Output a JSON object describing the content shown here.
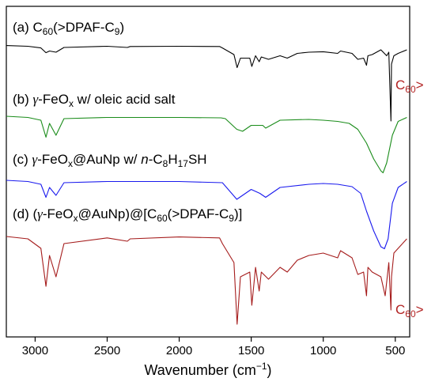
{
  "chart_data": {
    "type": "line",
    "xlabel": "Wavenumber (cm",
    "xlabel_sup": "−1",
    "xlabel_end": ")",
    "xlim": [
      3200,
      400
    ],
    "x_reversed": true,
    "x_ticks": [
      3000,
      2500,
      2000,
      1500,
      1000,
      500
    ],
    "x_tick_labels": [
      "3000",
      "2500",
      "2000",
      "1500",
      "1000",
      "500"
    ],
    "y_axis_labeled": false,
    "colors": {
      "a": "#000000",
      "b": "#1a8c1a",
      "c": "#1a1aee",
      "d": "#a51c1c",
      "annotation": "#b22222"
    },
    "series": [
      {
        "key": "a",
        "label_parts": {
          "prefix": "(a) C",
          "sub1": "60",
          "mid": "(>DPAF-C",
          "sub2": "9",
          "end": ")"
        },
        "x": [
          3200,
          3050,
          2960,
          2925,
          2900,
          2855,
          2800,
          2500,
          2360,
          2340,
          2000,
          1720,
          1700,
          1620,
          1598,
          1575,
          1510,
          1496,
          1470,
          1445,
          1430,
          1380,
          1300,
          1250,
          1180,
          1100,
          1000,
          900,
          880,
          800,
          760,
          720,
          700,
          690,
          660,
          600,
          560,
          545,
          530,
          526,
          510,
          480,
          420
        ],
        "y": [
          0.02,
          0.05,
          0.12,
          0.32,
          0.25,
          0.3,
          0.1,
          0.05,
          0.1,
          0.06,
          0.05,
          0.06,
          0.12,
          0.4,
          0.95,
          0.55,
          0.55,
          0.9,
          0.45,
          0.7,
          0.5,
          0.6,
          0.45,
          0.55,
          0.35,
          0.3,
          0.28,
          0.35,
          0.25,
          0.35,
          0.6,
          0.55,
          0.85,
          0.45,
          0.4,
          0.2,
          0.45,
          0.3,
          3.2,
          0.8,
          0.45,
          0.35,
          0.2
        ]
      },
      {
        "key": "b",
        "label_parts": {
          "greek": "γ",
          "prefix": "(b) ",
          "mid": "-FeO",
          "sub1": "x",
          "end": " w/ oleic acid salt"
        },
        "x": [
          3200,
          3050,
          2960,
          2925,
          2900,
          2855,
          2800,
          2500,
          2000,
          1710,
          1680,
          1600,
          1560,
          1500,
          1420,
          1400,
          1300,
          1100,
          1000,
          900,
          820,
          760,
          700,
          650,
          600,
          585,
          560,
          520,
          480,
          420
        ],
        "y": [
          0.02,
          0.05,
          0.12,
          0.55,
          0.2,
          0.5,
          0.08,
          0.05,
          0.05,
          0.06,
          0.08,
          0.35,
          0.4,
          0.25,
          0.25,
          0.32,
          0.12,
          0.1,
          0.12,
          0.15,
          0.2,
          0.35,
          0.7,
          1.1,
          1.4,
          1.45,
          1.2,
          0.5,
          0.15,
          0.05
        ]
      },
      {
        "key": "c",
        "label_parts": {
          "greek": "γ",
          "prefix": "(c) ",
          "mid": "-FeO",
          "sub1": "x",
          "mid2": "@AuNp w/ ",
          "italic": "n",
          "mid3": "-C",
          "sub2": "8",
          "mid4": "H",
          "sub3": "17",
          "end": "SH"
        },
        "x": [
          3200,
          3050,
          2960,
          2925,
          2900,
          2855,
          2800,
          2500,
          2000,
          1700,
          1600,
          1560,
          1500,
          1440,
          1400,
          1300,
          1100,
          1000,
          900,
          800,
          740,
          700,
          650,
          600,
          575,
          550,
          520,
          480,
          420
        ],
        "y": [
          0.02,
          0.05,
          0.12,
          0.45,
          0.2,
          0.4,
          0.08,
          0.05,
          0.05,
          0.08,
          0.5,
          0.4,
          0.25,
          0.35,
          0.45,
          0.2,
          0.12,
          0.1,
          0.12,
          0.18,
          0.35,
          0.8,
          1.3,
          1.7,
          1.75,
          1.5,
          0.6,
          0.2,
          0.05
        ]
      },
      {
        "key": "d",
        "label_parts": {
          "prefix": "(d) (",
          "greek": "γ",
          "mid": "-FeO",
          "sub1": "x",
          "mid2": "@AuNp)@[C",
          "sub2": "60",
          "mid3": "(>DPAF-C",
          "sub3": "9",
          "end": ")]"
        },
        "x": [
          3200,
          3050,
          2960,
          2925,
          2900,
          2855,
          2800,
          2500,
          2360,
          2340,
          2000,
          1720,
          1700,
          1620,
          1598,
          1575,
          1510,
          1496,
          1470,
          1445,
          1430,
          1380,
          1300,
          1250,
          1180,
          1100,
          1000,
          900,
          880,
          800,
          760,
          720,
          700,
          690,
          660,
          600,
          570,
          545,
          530,
          526,
          510,
          480,
          420
        ],
        "y": [
          0.05,
          0.1,
          0.3,
          1.1,
          0.45,
          0.9,
          0.2,
          0.08,
          0.15,
          0.1,
          0.06,
          0.08,
          0.2,
          0.6,
          1.9,
          0.9,
          0.8,
          1.5,
          0.7,
          1.2,
          0.8,
          0.95,
          0.7,
          0.8,
          0.55,
          0.45,
          0.4,
          0.5,
          0.35,
          0.5,
          0.85,
          0.8,
          1.3,
          0.7,
          0.8,
          0.9,
          1.3,
          0.6,
          1.6,
          0.9,
          0.4,
          0.3,
          0.1
        ]
      }
    ],
    "annotations": [
      {
        "text_main": "C",
        "text_sub": "60",
        "text_end": ">",
        "near_series": "a"
      },
      {
        "text_main": "C",
        "text_sub": "60",
        "text_end": ">",
        "near_series": "d"
      }
    ]
  }
}
